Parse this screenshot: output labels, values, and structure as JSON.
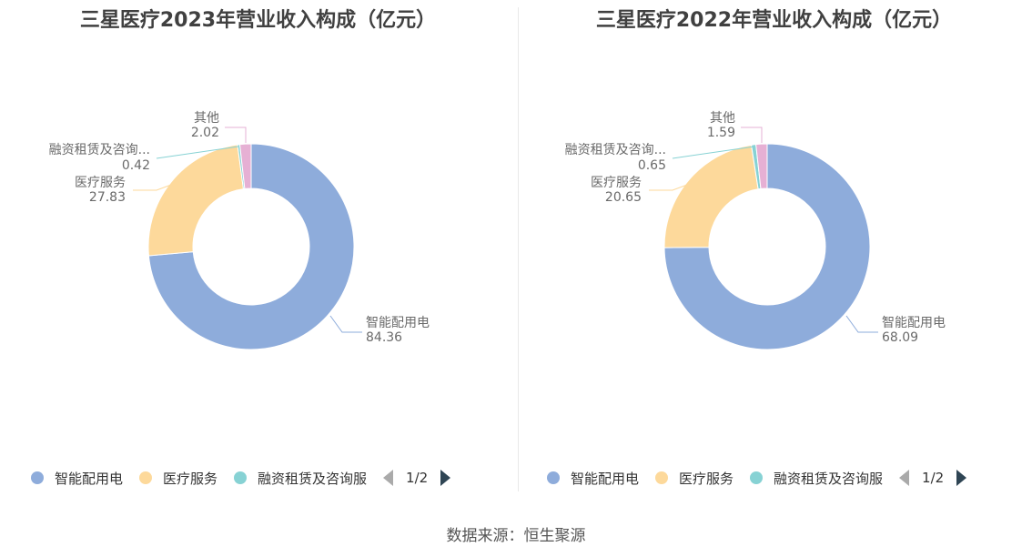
{
  "chart_data": [
    {
      "type": "pie",
      "title": "三星医疗2023年营业收入构成（亿元）",
      "slices": [
        {
          "name": "智能配用电",
          "label": "智能配用电",
          "value": 84.36,
          "color": "#8eacdb"
        },
        {
          "name": "医疗服务",
          "label": "医疗服务",
          "value": 27.83,
          "color": "#fdd99b"
        },
        {
          "name": "融资租赁及咨询服务",
          "label": "融资租赁及咨询...",
          "value": 0.42,
          "color": "#87d2d4"
        },
        {
          "name": "其他",
          "label": "其他",
          "value": 2.02,
          "color": "#e6b0d4"
        }
      ],
      "legend": {
        "placement": "bottom-left",
        "items": [
          "智能配用电",
          "医疗服务",
          "融资租赁及咨询服"
        ],
        "page": "1/2"
      }
    },
    {
      "type": "pie",
      "title": "三星医疗2022年营业收入构成（亿元）",
      "slices": [
        {
          "name": "智能配用电",
          "label": "智能配用电",
          "value": 68.09,
          "color": "#8eacdb"
        },
        {
          "name": "医疗服务",
          "label": "医疗服务",
          "value": 20.65,
          "color": "#fdd99b"
        },
        {
          "name": "融资租赁及咨询服务",
          "label": "融资租赁及咨询...",
          "value": 0.65,
          "color": "#87d2d4"
        },
        {
          "name": "其他",
          "label": "其他",
          "value": 1.59,
          "color": "#e6b0d4"
        }
      ],
      "legend": {
        "placement": "bottom-left",
        "items": [
          "智能配用电",
          "医疗服务",
          "融资租赁及咨询服"
        ],
        "page": "1/2"
      }
    }
  ],
  "source": "数据来源：恒生聚源"
}
